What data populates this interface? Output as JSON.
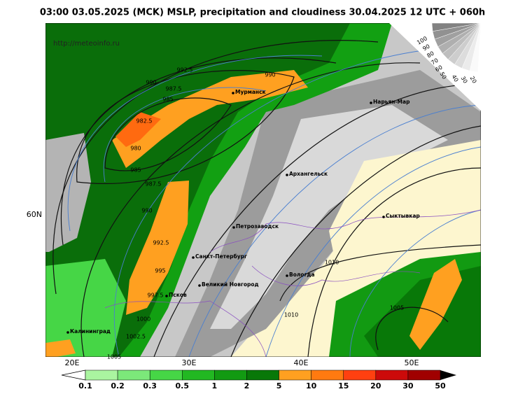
{
  "header": {
    "title": "03:00 03.05.2025 (MCK) MSLP, precipitation and cloudiness 30.04.2025 12 UTC + 060h",
    "url": "http://meteoinfo.ru"
  },
  "axes": {
    "longitudes": [
      "20E",
      "30E",
      "40E",
      "50E"
    ],
    "latitudes": [
      "60N"
    ]
  },
  "cities": [
    "Мурманск",
    "Нарьян-Мар",
    "Архангельск",
    "Сыктывкар",
    "Петрозаводск",
    "Санкт-Петербург",
    "Вологда",
    "Великий Новгород",
    "Псков",
    "Калининград"
  ],
  "isobar_labels": [
    "992.5",
    "990",
    "990",
    "987.5",
    "985",
    "982.5",
    "980",
    "985",
    "987.5",
    "990",
    "992.5",
    "995",
    "997.5",
    "1000",
    "1002.5",
    "1005",
    "1010",
    "1010",
    "1005"
  ],
  "cloudiness_scale": [
    "100",
    "90",
    "80",
    "70",
    "60",
    "50",
    "40",
    "30",
    "20"
  ],
  "precipitation_scale": [
    "0.1",
    "0.2",
    "0.3",
    "0.5",
    "1",
    "2",
    "5",
    "10",
    "15",
    "20",
    "30",
    "50"
  ]
}
